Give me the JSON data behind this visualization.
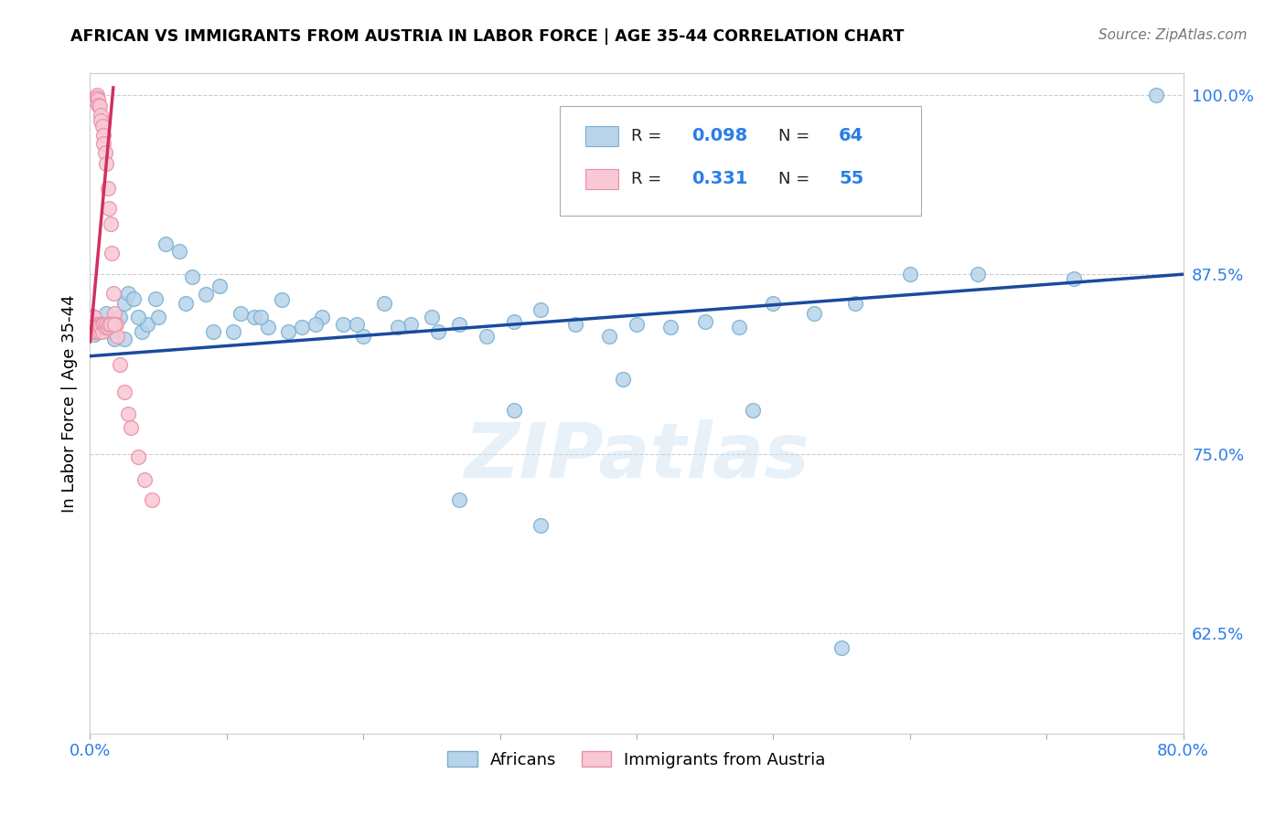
{
  "title": "AFRICAN VS IMMIGRANTS FROM AUSTRIA IN LABOR FORCE | AGE 35-44 CORRELATION CHART",
  "source": "Source: ZipAtlas.com",
  "ylabel": "In Labor Force | Age 35-44",
  "xlim": [
    0.0,
    0.8
  ],
  "ylim": [
    0.555,
    1.015
  ],
  "xticks": [
    0.0,
    0.1,
    0.2,
    0.3,
    0.4,
    0.5,
    0.6,
    0.7,
    0.8
  ],
  "xticklabels": [
    "0.0%",
    "",
    "",
    "",
    "",
    "",
    "",
    "",
    "80.0%"
  ],
  "ytick_positions": [
    0.625,
    0.75,
    0.875,
    1.0
  ],
  "yticklabels": [
    "62.5%",
    "75.0%",
    "87.5%",
    "100.0%"
  ],
  "blue_color": "#b8d4ea",
  "blue_edge_color": "#7aafcf",
  "pink_color": "#f8c8d4",
  "pink_edge_color": "#e890a8",
  "trend_blue": "#1a4a9e",
  "trend_pink": "#d03060",
  "legend_blue_label": "Africans",
  "legend_pink_label": "Immigrants from Austria",
  "r_blue": 0.098,
  "n_blue": 64,
  "r_pink": 0.331,
  "n_pink": 55,
  "watermark": "ZIPatlas",
  "blue_trend_x0": 0.0,
  "blue_trend_y0": 0.818,
  "blue_trend_x1": 0.8,
  "blue_trend_y1": 0.875,
  "pink_trend_x0": 0.0,
  "pink_trend_y0": 0.828,
  "pink_trend_x1": 0.017,
  "pink_trend_y1": 1.005,
  "af_x": [
    0.003,
    0.005,
    0.008,
    0.012,
    0.015,
    0.018,
    0.022,
    0.025,
    0.028,
    0.032,
    0.038,
    0.042,
    0.048,
    0.055,
    0.065,
    0.075,
    0.085,
    0.095,
    0.11,
    0.12,
    0.13,
    0.14,
    0.155,
    0.17,
    0.185,
    0.2,
    0.215,
    0.235,
    0.25,
    0.27,
    0.29,
    0.31,
    0.33,
    0.355,
    0.38,
    0.4,
    0.425,
    0.45,
    0.475,
    0.5,
    0.53,
    0.56,
    0.6,
    0.65,
    0.72,
    0.78,
    0.025,
    0.035,
    0.05,
    0.07,
    0.09,
    0.105,
    0.125,
    0.145,
    0.165,
    0.195,
    0.225,
    0.255,
    0.31,
    0.39,
    0.485,
    0.55,
    0.33,
    0.27
  ],
  "af_y": [
    0.833,
    0.838,
    0.841,
    0.848,
    0.835,
    0.83,
    0.845,
    0.855,
    0.862,
    0.858,
    0.835,
    0.84,
    0.858,
    0.896,
    0.891,
    0.873,
    0.861,
    0.867,
    0.848,
    0.845,
    0.838,
    0.857,
    0.838,
    0.845,
    0.84,
    0.832,
    0.855,
    0.84,
    0.845,
    0.84,
    0.832,
    0.842,
    0.85,
    0.84,
    0.832,
    0.84,
    0.838,
    0.842,
    0.838,
    0.855,
    0.848,
    0.855,
    0.875,
    0.875,
    0.872,
    1.0,
    0.83,
    0.845,
    0.845,
    0.855,
    0.835,
    0.835,
    0.845,
    0.835,
    0.84,
    0.84,
    0.838,
    0.835,
    0.78,
    0.802,
    0.78,
    0.615,
    0.7,
    0.718
  ],
  "at_x": [
    0.002,
    0.002,
    0.002,
    0.003,
    0.003,
    0.003,
    0.004,
    0.004,
    0.005,
    0.005,
    0.005,
    0.006,
    0.006,
    0.007,
    0.007,
    0.008,
    0.008,
    0.009,
    0.009,
    0.01,
    0.01,
    0.011,
    0.012,
    0.012,
    0.013,
    0.014,
    0.015,
    0.015,
    0.016,
    0.017,
    0.018,
    0.019,
    0.02,
    0.022,
    0.025,
    0.028,
    0.03,
    0.035,
    0.04,
    0.045,
    0.002,
    0.003,
    0.004,
    0.005,
    0.006,
    0.007,
    0.008,
    0.009,
    0.01,
    0.011,
    0.012,
    0.013,
    0.014,
    0.015,
    0.018
  ],
  "at_y": [
    0.838,
    0.842,
    0.846,
    0.835,
    0.84,
    0.845,
    0.998,
    0.996,
    1.0,
    0.998,
    0.84,
    0.997,
    0.993,
    0.992,
    0.84,
    0.986,
    0.982,
    0.84,
    0.978,
    0.972,
    0.966,
    0.96,
    0.952,
    0.84,
    0.935,
    0.921,
    0.91,
    0.841,
    0.89,
    0.862,
    0.848,
    0.84,
    0.832,
    0.812,
    0.793,
    0.778,
    0.768,
    0.748,
    0.732,
    0.718,
    0.838,
    0.835,
    0.835,
    0.835,
    0.838,
    0.835,
    0.838,
    0.835,
    0.84,
    0.838,
    0.84,
    0.838,
    0.84,
    0.84,
    0.84
  ]
}
